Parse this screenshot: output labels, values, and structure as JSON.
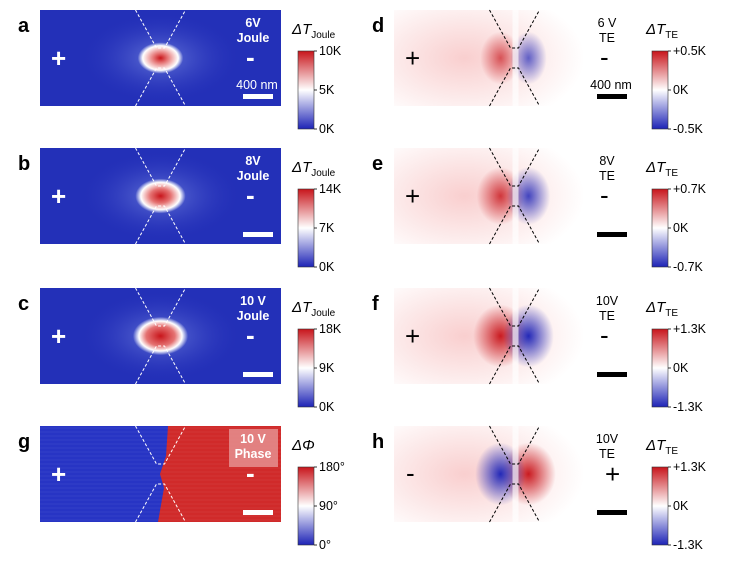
{
  "figure": {
    "panels": [
      {
        "id": "a",
        "label": "a",
        "kind": "joule",
        "voltage": "6V",
        "mode": "Joule",
        "plus": "+",
        "minus": "-",
        "scalebar": "400 nm",
        "colorbar": {
          "title_main": "ΔT",
          "title_sub": "Joule",
          "ticks": [
            "10K",
            "5K",
            "0K"
          ],
          "scheme": "seq"
        },
        "hot_level": 0.55
      },
      {
        "id": "b",
        "label": "b",
        "kind": "joule",
        "voltage": "8V",
        "mode": "Joule",
        "plus": "+",
        "minus": "-",
        "scalebar": "",
        "colorbar": {
          "title_main": "ΔT",
          "title_sub": "Joule",
          "ticks": [
            "14K",
            "7K",
            "0K"
          ],
          "scheme": "seq"
        },
        "hot_level": 0.75
      },
      {
        "id": "c",
        "label": "c",
        "kind": "joule",
        "voltage": "10 V",
        "mode": "Joule",
        "plus": "+",
        "minus": "-",
        "scalebar": "",
        "colorbar": {
          "title_main": "ΔT",
          "title_sub": "Joule",
          "ticks": [
            "18K",
            "9K",
            "0K"
          ],
          "scheme": "seq"
        },
        "hot_level": 0.95
      },
      {
        "id": "g",
        "label": "g",
        "kind": "phase",
        "voltage": "10 V",
        "mode": "Phase",
        "plus": "+",
        "minus": "-",
        "scalebar": "",
        "colorbar": {
          "title_main": "ΔΦ",
          "title_sub": "",
          "ticks": [
            "180°",
            "90°",
            "0°"
          ],
          "scheme": "div"
        }
      },
      {
        "id": "d",
        "label": "d",
        "kind": "te",
        "voltage": "6 V",
        "mode": "TE",
        "plus": "+",
        "minus": "-",
        "scalebar": "400 nm",
        "polarity": 1,
        "strength": 0.45,
        "colorbar": {
          "title_main": "ΔT",
          "title_sub": "TE",
          "ticks": [
            "+0.5K",
            "0K",
            "-0.5K"
          ],
          "scheme": "div"
        }
      },
      {
        "id": "e",
        "label": "e",
        "kind": "te",
        "voltage": "8V",
        "mode": "TE",
        "plus": "+",
        "minus": "-",
        "scalebar": "",
        "polarity": 1,
        "strength": 0.7,
        "colorbar": {
          "title_main": "ΔT",
          "title_sub": "TE",
          "ticks": [
            "+0.7K",
            "0K",
            "-0.7K"
          ],
          "scheme": "div"
        }
      },
      {
        "id": "f",
        "label": "f",
        "kind": "te",
        "voltage": "10V",
        "mode": "TE",
        "plus": "+",
        "minus": "-",
        "scalebar": "",
        "polarity": 1,
        "strength": 0.95,
        "colorbar": {
          "title_main": "ΔT",
          "title_sub": "TE",
          "ticks": [
            "+1.3K",
            "0K",
            "-1.3K"
          ],
          "scheme": "div"
        }
      },
      {
        "id": "h",
        "label": "h",
        "kind": "te",
        "voltage": "10V",
        "mode": "TE",
        "plus": "+",
        "minus": "-",
        "scalebar": "",
        "polarity": -1,
        "strength": 0.95,
        "colorbar": {
          "title_main": "ΔT",
          "title_sub": "TE",
          "ticks": [
            "+1.3K",
            "0K",
            "-1.3K"
          ],
          "scheme": "div"
        }
      }
    ]
  },
  "colors": {
    "cmap_blue": "#1d23b6",
    "cmap_white": "#ffffff",
    "cmap_red": "#c8151b",
    "annotation_dark": "#000000",
    "annotation_light": "#ffffff"
  }
}
